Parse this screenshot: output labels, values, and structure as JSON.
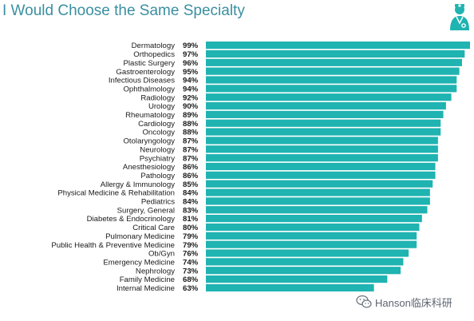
{
  "chart_data": {
    "type": "bar",
    "orientation": "horizontal",
    "title": "I Would Choose the Same Specialty",
    "categories": [
      "Dermatology",
      "Orthopedics",
      "Plastic Surgery",
      "Gastroenterology",
      "Infectious Diseases",
      "Ophthalmology",
      "Radiology",
      "Urology",
      "Rheumatology",
      "Cardiology",
      "Oncology",
      "Otolaryngology",
      "Neurology",
      "Psychiatry",
      "Anesthesiology",
      "Pathology",
      "Allergy & Immunology",
      "Physical Medicine & Rehabilitation",
      "Pediatrics",
      "Surgery, General",
      "Diabetes & Endocrinology",
      "Critical Care",
      "Pulmonary Medicine",
      "Public Health & Preventive Medicine",
      "Ob/Gyn",
      "Emergency Medicine",
      "Nephrology",
      "Family Medicine",
      "Internal Medicine"
    ],
    "values": [
      99,
      97,
      96,
      95,
      94,
      94,
      92,
      90,
      89,
      88,
      88,
      87,
      87,
      87,
      86,
      86,
      85,
      84,
      84,
      83,
      81,
      80,
      79,
      79,
      76,
      74,
      73,
      68,
      63
    ],
    "value_labels": [
      "99%",
      "97%",
      "96%",
      "95%",
      "94%",
      "94%",
      "92%",
      "90%",
      "89%",
      "88%",
      "88%",
      "87%",
      "87%",
      "87%",
      "86%",
      "86%",
      "85%",
      "84%",
      "84%",
      "83%",
      "81%",
      "80%",
      "79%",
      "79%",
      "76%",
      "74%",
      "73%",
      "68%",
      "63%"
    ],
    "bar_color": "#1fb3b1",
    "grid": false,
    "legend": "none"
  },
  "header": {
    "icon": "doctor-icon"
  },
  "watermark": {
    "icon": "wechat-icon",
    "text": "Hanson临床科研"
  }
}
